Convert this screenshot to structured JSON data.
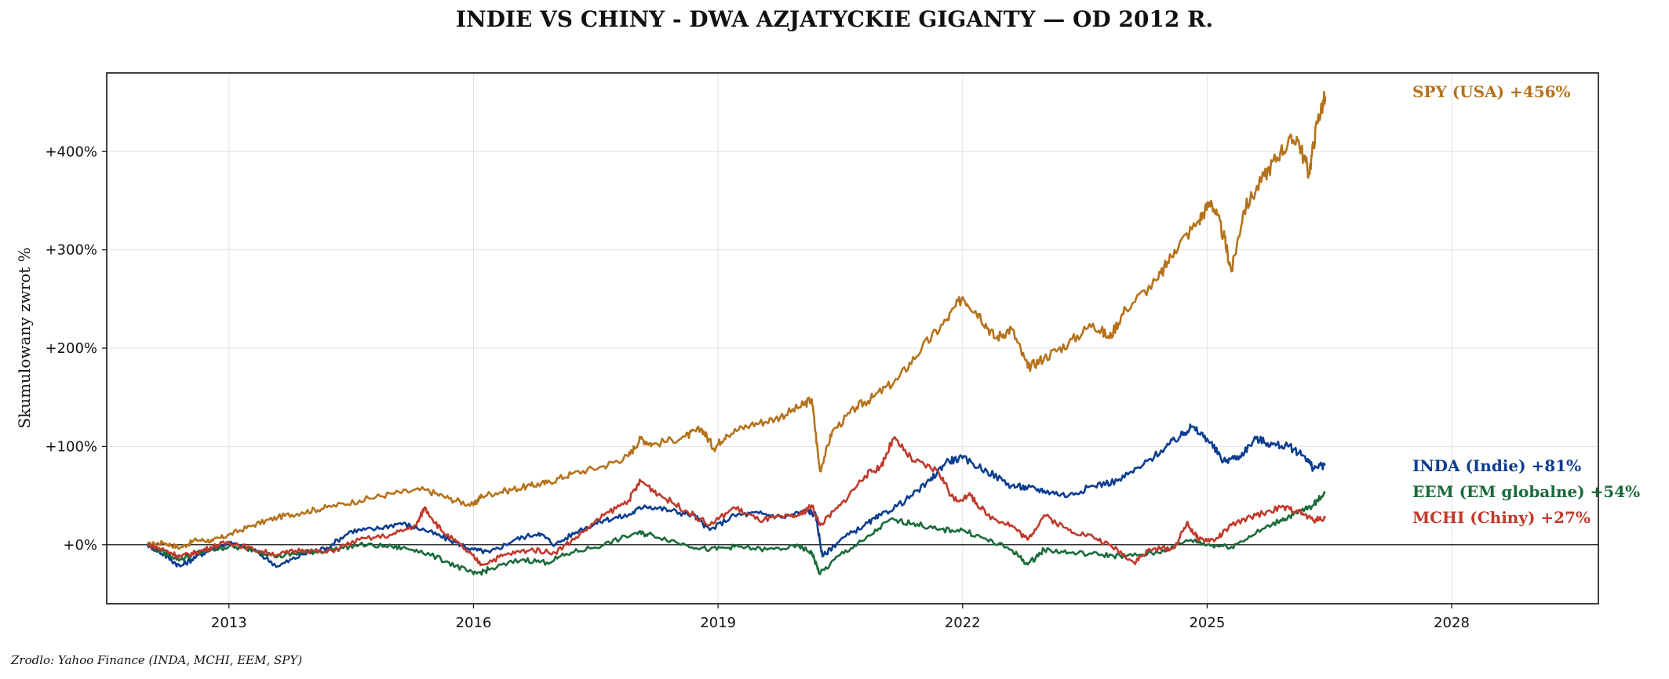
{
  "chart_data": {
    "type": "line",
    "title": "INDIE VS CHINY - DWA AZJATYCKIE GIGANTY — OD 2012 R.",
    "xlabel": "",
    "ylabel": "Skumulowany zwrot %",
    "xlim": [
      2011.5,
      2029.8
    ],
    "ylim": [
      -60,
      480
    ],
    "x_ticks": [
      2013,
      2016,
      2019,
      2022,
      2025,
      2028
    ],
    "x_tick_labels": [
      "2013",
      "2016",
      "2019",
      "2022",
      "2025",
      "2028"
    ],
    "y_ticks": [
      0,
      100,
      200,
      300,
      400
    ],
    "y_tick_labels": [
      "+0%",
      "+100%",
      "+200%",
      "+300%",
      "+400%"
    ],
    "grid": true,
    "zero_line": true,
    "series": [
      {
        "name": "SPY (USA)",
        "label": "SPY (USA)  +456%",
        "final": 456,
        "color": "#b5721b",
        "points": [
          [
            2012.0,
            0
          ],
          [
            2012.2,
            2
          ],
          [
            2012.4,
            -3
          ],
          [
            2012.6,
            5
          ],
          [
            2012.8,
            4
          ],
          [
            2013.0,
            10
          ],
          [
            2013.3,
            20
          ],
          [
            2013.6,
            28
          ],
          [
            2013.9,
            33
          ],
          [
            2014.2,
            38
          ],
          [
            2014.6,
            45
          ],
          [
            2015.0,
            52
          ],
          [
            2015.4,
            56
          ],
          [
            2015.7,
            47
          ],
          [
            2016.0,
            40
          ],
          [
            2016.1,
            50
          ],
          [
            2016.4,
            55
          ],
          [
            2016.7,
            60
          ],
          [
            2016.9,
            63
          ],
          [
            2017.2,
            72
          ],
          [
            2017.6,
            80
          ],
          [
            2017.9,
            90
          ],
          [
            2018.05,
            108
          ],
          [
            2018.2,
            102
          ],
          [
            2018.6,
            110
          ],
          [
            2018.8,
            118
          ],
          [
            2018.95,
            98
          ],
          [
            2019.1,
            112
          ],
          [
            2019.4,
            122
          ],
          [
            2019.7,
            128
          ],
          [
            2020.0,
            140
          ],
          [
            2020.15,
            148
          ],
          [
            2020.25,
            75
          ],
          [
            2020.4,
            115
          ],
          [
            2020.7,
            140
          ],
          [
            2020.9,
            150
          ],
          [
            2021.2,
            168
          ],
          [
            2021.5,
            200
          ],
          [
            2021.8,
            228
          ],
          [
            2022.0,
            252
          ],
          [
            2022.2,
            235
          ],
          [
            2022.4,
            210
          ],
          [
            2022.6,
            220
          ],
          [
            2022.8,
            180
          ],
          [
            2023.0,
            190
          ],
          [
            2023.3,
            205
          ],
          [
            2023.6,
            225
          ],
          [
            2023.8,
            210
          ],
          [
            2024.0,
            240
          ],
          [
            2024.4,
            270
          ],
          [
            2024.6,
            300
          ],
          [
            2024.9,
            330
          ],
          [
            2025.05,
            350
          ],
          [
            2025.2,
            315
          ],
          [
            2025.3,
            278
          ],
          [
            2025.45,
            340
          ],
          [
            2025.7,
            375
          ],
          [
            2025.9,
            400
          ],
          [
            2026.1,
            415
          ],
          [
            2026.25,
            378
          ],
          [
            2026.35,
            430
          ],
          [
            2026.45,
            456
          ]
        ]
      },
      {
        "name": "INDA (Indie)",
        "label": "INDA (Indie)  +81%",
        "final": 81,
        "color": "#0b3d91",
        "points": [
          [
            2012.0,
            0
          ],
          [
            2012.2,
            -10
          ],
          [
            2012.4,
            -22
          ],
          [
            2012.6,
            -12
          ],
          [
            2012.8,
            -4
          ],
          [
            2013.0,
            2
          ],
          [
            2013.3,
            -5
          ],
          [
            2013.6,
            -22
          ],
          [
            2013.9,
            -10
          ],
          [
            2014.2,
            -3
          ],
          [
            2014.5,
            14
          ],
          [
            2014.8,
            16
          ],
          [
            2015.1,
            22
          ],
          [
            2015.4,
            15
          ],
          [
            2015.7,
            5
          ],
          [
            2016.0,
            -5
          ],
          [
            2016.2,
            -8
          ],
          [
            2016.5,
            5
          ],
          [
            2016.8,
            12
          ],
          [
            2017.0,
            0
          ],
          [
            2017.3,
            15
          ],
          [
            2017.6,
            25
          ],
          [
            2017.9,
            30
          ],
          [
            2018.1,
            40
          ],
          [
            2018.4,
            35
          ],
          [
            2018.7,
            30
          ],
          [
            2018.9,
            15
          ],
          [
            2019.2,
            30
          ],
          [
            2019.5,
            32
          ],
          [
            2019.8,
            28
          ],
          [
            2020.1,
            35
          ],
          [
            2020.2,
            30
          ],
          [
            2020.28,
            -12
          ],
          [
            2020.5,
            5
          ],
          [
            2020.8,
            20
          ],
          [
            2021.0,
            30
          ],
          [
            2021.3,
            45
          ],
          [
            2021.6,
            65
          ],
          [
            2021.8,
            85
          ],
          [
            2022.0,
            88
          ],
          [
            2022.3,
            75
          ],
          [
            2022.6,
            60
          ],
          [
            2022.8,
            58
          ],
          [
            2023.0,
            55
          ],
          [
            2023.3,
            50
          ],
          [
            2023.6,
            60
          ],
          [
            2023.9,
            65
          ],
          [
            2024.2,
            80
          ],
          [
            2024.5,
            100
          ],
          [
            2024.7,
            112
          ],
          [
            2024.8,
            120
          ],
          [
            2025.0,
            108
          ],
          [
            2025.2,
            85
          ],
          [
            2025.4,
            90
          ],
          [
            2025.6,
            108
          ],
          [
            2025.8,
            102
          ],
          [
            2026.0,
            100
          ],
          [
            2026.2,
            90
          ],
          [
            2026.3,
            78
          ],
          [
            2026.45,
            81
          ]
        ]
      },
      {
        "name": "EEM (EM globalne)",
        "label": "EEM (EM globalne)  +54%",
        "final": 54,
        "color": "#1a6b3a",
        "points": [
          [
            2012.0,
            0
          ],
          [
            2012.2,
            -8
          ],
          [
            2012.4,
            -15
          ],
          [
            2012.6,
            -8
          ],
          [
            2012.8,
            -5
          ],
          [
            2013.0,
            -2
          ],
          [
            2013.3,
            -5
          ],
          [
            2013.6,
            -12
          ],
          [
            2013.9,
            -8
          ],
          [
            2014.2,
            -6
          ],
          [
            2014.6,
            0
          ],
          [
            2015.0,
            -2
          ],
          [
            2015.3,
            -5
          ],
          [
            2015.7,
            -18
          ],
          [
            2016.0,
            -30
          ],
          [
            2016.2,
            -25
          ],
          [
            2016.6,
            -15
          ],
          [
            2016.9,
            -18
          ],
          [
            2017.2,
            -8
          ],
          [
            2017.6,
            0
          ],
          [
            2018.0,
            12
          ],
          [
            2018.2,
            10
          ],
          [
            2018.6,
            0
          ],
          [
            2018.9,
            -5
          ],
          [
            2019.2,
            -2
          ],
          [
            2019.6,
            -5
          ],
          [
            2020.0,
            -2
          ],
          [
            2020.15,
            -8
          ],
          [
            2020.25,
            -30
          ],
          [
            2020.5,
            -10
          ],
          [
            2020.8,
            5
          ],
          [
            2021.1,
            25
          ],
          [
            2021.4,
            22
          ],
          [
            2021.7,
            15
          ],
          [
            2022.0,
            15
          ],
          [
            2022.3,
            5
          ],
          [
            2022.6,
            -5
          ],
          [
            2022.8,
            -20
          ],
          [
            2023.0,
            -5
          ],
          [
            2023.3,
            -8
          ],
          [
            2023.7,
            -10
          ],
          [
            2024.0,
            -12
          ],
          [
            2024.4,
            -8
          ],
          [
            2024.8,
            5
          ],
          [
            2025.0,
            0
          ],
          [
            2025.3,
            -2
          ],
          [
            2025.6,
            12
          ],
          [
            2025.9,
            25
          ],
          [
            2026.1,
            32
          ],
          [
            2026.3,
            40
          ],
          [
            2026.45,
            54
          ]
        ]
      },
      {
        "name": "MCHI (Chiny)",
        "label": "MCHI (Chiny)  +27%",
        "final": 27,
        "color": "#c0392b",
        "points": [
          [
            2012.0,
            0
          ],
          [
            2012.2,
            -5
          ],
          [
            2012.4,
            -12
          ],
          [
            2012.6,
            -8
          ],
          [
            2012.8,
            -2
          ],
          [
            2013.0,
            3
          ],
          [
            2013.3,
            -5
          ],
          [
            2013.6,
            -10
          ],
          [
            2013.9,
            -5
          ],
          [
            2014.2,
            -8
          ],
          [
            2014.6,
            5
          ],
          [
            2015.0,
            10
          ],
          [
            2015.3,
            20
          ],
          [
            2015.4,
            38
          ],
          [
            2015.6,
            15
          ],
          [
            2015.9,
            -5
          ],
          [
            2016.1,
            -20
          ],
          [
            2016.4,
            -10
          ],
          [
            2016.7,
            -5
          ],
          [
            2017.0,
            -8
          ],
          [
            2017.3,
            10
          ],
          [
            2017.6,
            30
          ],
          [
            2017.9,
            45
          ],
          [
            2018.05,
            65
          ],
          [
            2018.3,
            50
          ],
          [
            2018.6,
            35
          ],
          [
            2018.9,
            20
          ],
          [
            2019.2,
            38
          ],
          [
            2019.5,
            25
          ],
          [
            2019.8,
            28
          ],
          [
            2020.0,
            30
          ],
          [
            2020.15,
            40
          ],
          [
            2020.25,
            20
          ],
          [
            2020.5,
            40
          ],
          [
            2020.8,
            70
          ],
          [
            2021.0,
            80
          ],
          [
            2021.15,
            108
          ],
          [
            2021.4,
            85
          ],
          [
            2021.7,
            75
          ],
          [
            2021.9,
            45
          ],
          [
            2022.1,
            50
          ],
          [
            2022.3,
            30
          ],
          [
            2022.6,
            20
          ],
          [
            2022.8,
            5
          ],
          [
            2023.0,
            30
          ],
          [
            2023.3,
            15
          ],
          [
            2023.6,
            8
          ],
          [
            2023.9,
            -5
          ],
          [
            2024.1,
            -18
          ],
          [
            2024.3,
            -5
          ],
          [
            2024.6,
            -3
          ],
          [
            2024.75,
            22
          ],
          [
            2024.9,
            5
          ],
          [
            2025.1,
            5
          ],
          [
            2025.3,
            20
          ],
          [
            2025.6,
            30
          ],
          [
            2025.9,
            38
          ],
          [
            2026.1,
            35
          ],
          [
            2026.3,
            25
          ],
          [
            2026.45,
            27
          ]
        ]
      }
    ],
    "source": "Zrodlo: Yahoo Finance (INDA, MCHI, EEM, SPY)"
  }
}
